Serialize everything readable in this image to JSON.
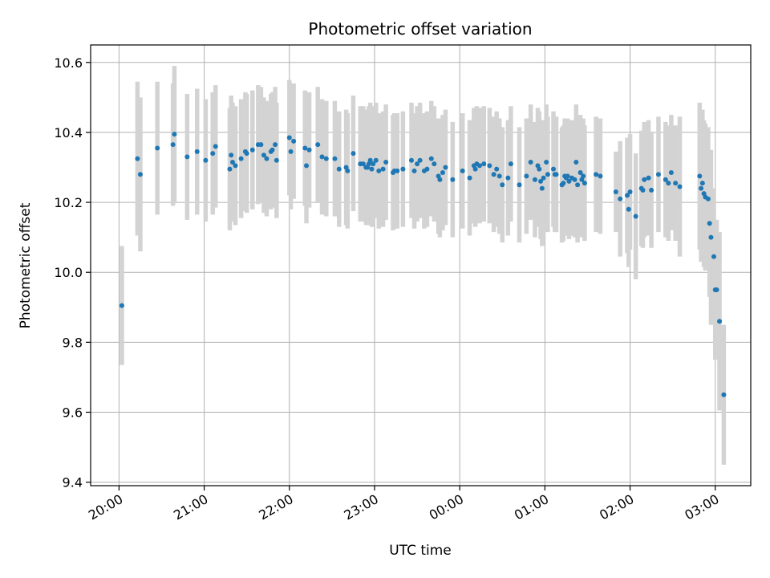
{
  "chart_data": {
    "type": "scatter",
    "title": "Photometric offset variation",
    "xlabel": "UTC time",
    "ylabel": "Photometric offset",
    "x_unit": "UTC time (hours:minutes)",
    "xlim": [
      "19:40",
      "03:25"
    ],
    "ylim": [
      9.39,
      10.65
    ],
    "x_ticks": [
      "20:00",
      "21:00",
      "22:00",
      "23:00",
      "00:00",
      "01:00",
      "02:00",
      "03:00"
    ],
    "y_ticks": [
      9.4,
      9.6,
      9.8,
      10.0,
      10.2,
      10.4,
      10.6
    ],
    "y_tick_labels": [
      "9.4",
      "9.6",
      "9.8",
      "10.0",
      "10.2",
      "10.4",
      "10.6"
    ],
    "grid": true,
    "colors": {
      "point": "#1f77b4",
      "errorbar": "#d3d3d3",
      "grid": "#b0b0b0",
      "axes": "#000000"
    },
    "series": [
      {
        "points": [
          {
            "x": "20:02",
            "y": 9.905,
            "err": 0.17
          },
          {
            "x": "20:13",
            "y": 10.325,
            "err": 0.22
          },
          {
            "x": "20:15",
            "y": 10.28,
            "err": 0.22
          },
          {
            "x": "20:27",
            "y": 10.355,
            "err": 0.19
          },
          {
            "x": "20:38",
            "y": 10.365,
            "err": 0.175
          },
          {
            "x": "20:39",
            "y": 10.395,
            "err": 0.195
          },
          {
            "x": "20:48",
            "y": 10.33,
            "err": 0.18
          },
          {
            "x": "20:55",
            "y": 10.345,
            "err": 0.18
          },
          {
            "x": "21:01",
            "y": 10.32,
            "err": 0.175
          },
          {
            "x": "21:06",
            "y": 10.34,
            "err": 0.175
          },
          {
            "x": "21:08",
            "y": 10.36,
            "err": 0.175
          },
          {
            "x": "21:18",
            "y": 10.295,
            "err": 0.175
          },
          {
            "x": "21:19",
            "y": 10.335,
            "err": 0.17
          },
          {
            "x": "21:20",
            "y": 10.315,
            "err": 0.17
          },
          {
            "x": "21:22",
            "y": 10.305,
            "err": 0.17
          },
          {
            "x": "21:26",
            "y": 10.325,
            "err": 0.17
          },
          {
            "x": "21:29",
            "y": 10.345,
            "err": 0.17
          },
          {
            "x": "21:30",
            "y": 10.34,
            "err": 0.17
          },
          {
            "x": "21:34",
            "y": 10.35,
            "err": 0.17
          },
          {
            "x": "21:38",
            "y": 10.365,
            "err": 0.17
          },
          {
            "x": "21:40",
            "y": 10.365,
            "err": 0.165
          },
          {
            "x": "21:42",
            "y": 10.335,
            "err": 0.165
          },
          {
            "x": "21:44",
            "y": 10.325,
            "err": 0.165
          },
          {
            "x": "21:47",
            "y": 10.345,
            "err": 0.165
          },
          {
            "x": "21:48",
            "y": 10.35,
            "err": 0.165
          },
          {
            "x": "21:50",
            "y": 10.365,
            "err": 0.165
          },
          {
            "x": "21:51",
            "y": 10.32,
            "err": 0.165
          },
          {
            "x": "22:00",
            "y": 10.385,
            "err": 0.165
          },
          {
            "x": "22:01",
            "y": 10.345,
            "err": 0.165
          },
          {
            "x": "22:03",
            "y": 10.375,
            "err": 0.165
          },
          {
            "x": "22:11",
            "y": 10.355,
            "err": 0.165
          },
          {
            "x": "22:12",
            "y": 10.305,
            "err": 0.165
          },
          {
            "x": "22:14",
            "y": 10.35,
            "err": 0.165
          },
          {
            "x": "22:20",
            "y": 10.365,
            "err": 0.165
          },
          {
            "x": "22:23",
            "y": 10.33,
            "err": 0.165
          },
          {
            "x": "22:26",
            "y": 10.325,
            "err": 0.165
          },
          {
            "x": "22:32",
            "y": 10.325,
            "err": 0.165
          },
          {
            "x": "22:35",
            "y": 10.295,
            "err": 0.165
          },
          {
            "x": "22:40",
            "y": 10.3,
            "err": 0.165
          },
          {
            "x": "22:41",
            "y": 10.29,
            "err": 0.165
          },
          {
            "x": "22:45",
            "y": 10.34,
            "err": 0.165
          },
          {
            "x": "22:50",
            "y": 10.31,
            "err": 0.165
          },
          {
            "x": "22:52",
            "y": 10.31,
            "err": 0.165
          },
          {
            "x": "22:54",
            "y": 10.3,
            "err": 0.165
          },
          {
            "x": "22:55",
            "y": 10.3,
            "err": 0.165
          },
          {
            "x": "22:56",
            "y": 10.31,
            "err": 0.165
          },
          {
            "x": "22:57",
            "y": 10.32,
            "err": 0.165
          },
          {
            "x": "22:58",
            "y": 10.295,
            "err": 0.165
          },
          {
            "x": "22:59",
            "y": 10.31,
            "err": 0.165
          },
          {
            "x": "23:01",
            "y": 10.32,
            "err": 0.165
          },
          {
            "x": "23:03",
            "y": 10.29,
            "err": 0.165
          },
          {
            "x": "23:06",
            "y": 10.295,
            "err": 0.165
          },
          {
            "x": "23:08",
            "y": 10.315,
            "err": 0.165
          },
          {
            "x": "23:13",
            "y": 10.285,
            "err": 0.165
          },
          {
            "x": "23:14",
            "y": 10.29,
            "err": 0.165
          },
          {
            "x": "23:16",
            "y": 10.29,
            "err": 0.165
          },
          {
            "x": "23:20",
            "y": 10.295,
            "err": 0.165
          },
          {
            "x": "23:26",
            "y": 10.32,
            "err": 0.165
          },
          {
            "x": "23:28",
            "y": 10.29,
            "err": 0.165
          },
          {
            "x": "23:30",
            "y": 10.31,
            "err": 0.165
          },
          {
            "x": "23:32",
            "y": 10.32,
            "err": 0.165
          },
          {
            "x": "23:35",
            "y": 10.29,
            "err": 0.165
          },
          {
            "x": "23:37",
            "y": 10.295,
            "err": 0.165
          },
          {
            "x": "23:40",
            "y": 10.325,
            "err": 0.165
          },
          {
            "x": "23:42",
            "y": 10.31,
            "err": 0.165
          },
          {
            "x": "23:45",
            "y": 10.275,
            "err": 0.165
          },
          {
            "x": "23:46",
            "y": 10.265,
            "err": 0.165
          },
          {
            "x": "23:48",
            "y": 10.285,
            "err": 0.165
          },
          {
            "x": "23:50",
            "y": 10.3,
            "err": 0.165
          },
          {
            "x": "23:55",
            "y": 10.265,
            "err": 0.165
          },
          {
            "x": "00:02",
            "y": 10.29,
            "err": 0.165
          },
          {
            "x": "00:07",
            "y": 10.27,
            "err": 0.165
          },
          {
            "x": "00:10",
            "y": 10.305,
            "err": 0.165
          },
          {
            "x": "00:11",
            "y": 10.295,
            "err": 0.165
          },
          {
            "x": "00:12",
            "y": 10.31,
            "err": 0.165
          },
          {
            "x": "00:14",
            "y": 10.305,
            "err": 0.165
          },
          {
            "x": "00:17",
            "y": 10.31,
            "err": 0.165
          },
          {
            "x": "00:21",
            "y": 10.305,
            "err": 0.165
          },
          {
            "x": "00:24",
            "y": 10.28,
            "err": 0.165
          },
          {
            "x": "00:26",
            "y": 10.295,
            "err": 0.165
          },
          {
            "x": "00:28",
            "y": 10.275,
            "err": 0.165
          },
          {
            "x": "00:30",
            "y": 10.25,
            "err": 0.165
          },
          {
            "x": "00:34",
            "y": 10.27,
            "err": 0.165
          },
          {
            "x": "00:36",
            "y": 10.31,
            "err": 0.165
          },
          {
            "x": "00:42",
            "y": 10.25,
            "err": 0.165
          },
          {
            "x": "00:47",
            "y": 10.275,
            "err": 0.165
          },
          {
            "x": "00:50",
            "y": 10.315,
            "err": 0.165
          },
          {
            "x": "00:53",
            "y": 10.265,
            "err": 0.165
          },
          {
            "x": "00:55",
            "y": 10.305,
            "err": 0.165
          },
          {
            "x": "00:56",
            "y": 10.295,
            "err": 0.165
          },
          {
            "x": "00:57",
            "y": 10.26,
            "err": 0.165
          },
          {
            "x": "00:58",
            "y": 10.24,
            "err": 0.165
          },
          {
            "x": "00:59",
            "y": 10.27,
            "err": 0.165
          },
          {
            "x": "01:01",
            "y": 10.315,
            "err": 0.165
          },
          {
            "x": "01:02",
            "y": 10.28,
            "err": 0.165
          },
          {
            "x": "01:06",
            "y": 10.295,
            "err": 0.165
          },
          {
            "x": "01:07",
            "y": 10.28,
            "err": 0.165
          },
          {
            "x": "01:08",
            "y": 10.28,
            "err": 0.165
          },
          {
            "x": "01:12",
            "y": 10.25,
            "err": 0.165
          },
          {
            "x": "01:13",
            "y": 10.255,
            "err": 0.165
          },
          {
            "x": "01:14",
            "y": 10.275,
            "err": 0.165
          },
          {
            "x": "01:15",
            "y": 10.27,
            "err": 0.165
          },
          {
            "x": "01:16",
            "y": 10.275,
            "err": 0.165
          },
          {
            "x": "01:17",
            "y": 10.26,
            "err": 0.165
          },
          {
            "x": "01:19",
            "y": 10.27,
            "err": 0.165
          },
          {
            "x": "01:21",
            "y": 10.265,
            "err": 0.165
          },
          {
            "x": "01:22",
            "y": 10.315,
            "err": 0.165
          },
          {
            "x": "01:23",
            "y": 10.25,
            "err": 0.165
          },
          {
            "x": "01:25",
            "y": 10.285,
            "err": 0.165
          },
          {
            "x": "01:26",
            "y": 10.265,
            "err": 0.165
          },
          {
            "x": "01:27",
            "y": 10.275,
            "err": 0.165
          },
          {
            "x": "01:28",
            "y": 10.255,
            "err": 0.165
          },
          {
            "x": "01:36",
            "y": 10.28,
            "err": 0.165
          },
          {
            "x": "01:39",
            "y": 10.275,
            "err": 0.165
          },
          {
            "x": "01:50",
            "y": 10.23,
            "err": 0.115
          },
          {
            "x": "01:53",
            "y": 10.21,
            "err": 0.165
          },
          {
            "x": "01:58",
            "y": 10.22,
            "err": 0.165
          },
          {
            "x": "01:59",
            "y": 10.18,
            "err": 0.165
          },
          {
            "x": "02:00",
            "y": 10.23,
            "err": 0.165
          },
          {
            "x": "02:04",
            "y": 10.16,
            "err": 0.18
          },
          {
            "x": "02:08",
            "y": 10.24,
            "err": 0.165
          },
          {
            "x": "02:09",
            "y": 10.235,
            "err": 0.165
          },
          {
            "x": "02:10",
            "y": 10.265,
            "err": 0.165
          },
          {
            "x": "02:13",
            "y": 10.27,
            "err": 0.165
          },
          {
            "x": "02:15",
            "y": 10.235,
            "err": 0.165
          },
          {
            "x": "02:20",
            "y": 10.28,
            "err": 0.165
          },
          {
            "x": "02:25",
            "y": 10.265,
            "err": 0.165
          },
          {
            "x": "02:27",
            "y": 10.255,
            "err": 0.165
          },
          {
            "x": "02:29",
            "y": 10.285,
            "err": 0.165
          },
          {
            "x": "02:32",
            "y": 10.255,
            "err": 0.165
          },
          {
            "x": "02:35",
            "y": 10.245,
            "err": 0.2
          },
          {
            "x": "02:49",
            "y": 10.275,
            "err": 0.21
          },
          {
            "x": "02:50",
            "y": 10.24,
            "err": 0.21
          },
          {
            "x": "02:51",
            "y": 10.255,
            "err": 0.21
          },
          {
            "x": "02:52",
            "y": 10.225,
            "err": 0.21
          },
          {
            "x": "02:53",
            "y": 10.215,
            "err": 0.21
          },
          {
            "x": "02:55",
            "y": 10.21,
            "err": 0.205
          },
          {
            "x": "02:56",
            "y": 10.14,
            "err": 0.21
          },
          {
            "x": "02:57",
            "y": 10.1,
            "err": 0.25
          },
          {
            "x": "02:59",
            "y": 10.045,
            "err": 0.195
          },
          {
            "x": "03:00",
            "y": 9.95,
            "err": 0.2
          },
          {
            "x": "03:01",
            "y": 9.95,
            "err": 0.2
          },
          {
            "x": "03:03",
            "y": 9.86,
            "err": 0.255
          },
          {
            "x": "03:06",
            "y": 9.65,
            "err": 0.2
          }
        ]
      }
    ]
  }
}
